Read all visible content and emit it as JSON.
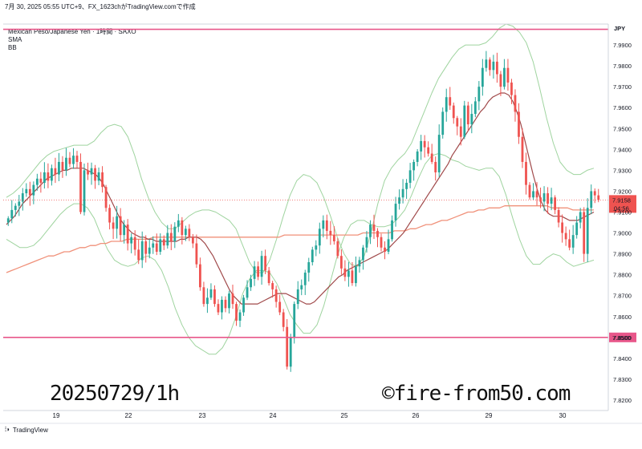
{
  "header": {
    "text": "7月 30, 2025 05:55 UTC+9、FX_1623chがTradingView.comで作成"
  },
  "legend": {
    "symbol": "Mexican Peso/Japanese Yen · 1時間 · SAXO",
    "items": [
      "SMA",
      "BB"
    ]
  },
  "currency_label": "JPY",
  "price_tags": {
    "current": "7.9158",
    "countdown": "04:56",
    "line_level": "7.8500"
  },
  "watermark_left": "20250729/1h",
  "watermark_right": "©fire-from50.com",
  "brand": {
    "icon": "tradingview-logo-icon",
    "text": "TradingView"
  },
  "colors": {
    "up": "#26a69a",
    "down": "#ef5350",
    "sma_short": "#a0494a",
    "sma_long": "#f0917a",
    "bb": "#9fd49f",
    "hline": "#e8578a",
    "price_tag": "#ef5350"
  },
  "chart_data": {
    "type": "candlestick",
    "symbol": "MXN/JPY",
    "timeframe": "1h",
    "ylim": [
      7.815,
      8.0
    ],
    "y_ticks": [
      "7.8200",
      "7.8300",
      "7.8400",
      "7.8500",
      "7.8600",
      "7.8700",
      "7.8800",
      "7.8900",
      "7.9000",
      "7.9100",
      "7.9200",
      "7.9300",
      "7.9400",
      "7.9500",
      "7.9600",
      "7.9700",
      "7.9800",
      "7.9900"
    ],
    "x_ticks": [
      "19",
      "22",
      "23",
      "24",
      "25",
      "26",
      "29",
      "30"
    ],
    "current_price": 7.9158,
    "horizontal_lines": [
      7.9975,
      7.85
    ],
    "closes": [
      7.907,
      7.911,
      7.913,
      7.915,
      7.919,
      7.921,
      7.918,
      7.923,
      7.926,
      7.924,
      7.929,
      7.925,
      7.931,
      7.928,
      7.934,
      7.93,
      7.936,
      7.933,
      7.937,
      7.934,
      7.91,
      7.93,
      7.928,
      7.931,
      7.925,
      7.929,
      7.922,
      7.912,
      7.905,
      7.902,
      7.908,
      7.899,
      7.904,
      7.895,
      7.898,
      7.892,
      7.887,
      7.896,
      7.89,
      7.893,
      7.895,
      7.891,
      7.897,
      7.894,
      7.9,
      7.896,
      7.903,
      7.906,
      7.899,
      7.902,
      7.898,
      7.895,
      7.885,
      7.874,
      7.866,
      7.869,
      7.873,
      7.866,
      7.862,
      7.868,
      7.864,
      7.871,
      7.866,
      7.858,
      7.862,
      7.869,
      7.874,
      7.878,
      7.884,
      7.879,
      7.889,
      7.882,
      7.876,
      7.873,
      7.867,
      7.862,
      7.855,
      7.836,
      7.85,
      7.866,
      7.873,
      7.875,
      7.881,
      7.886,
      7.892,
      7.894,
      7.902,
      7.906,
      7.901,
      7.899,
      7.896,
      7.889,
      7.883,
      7.879,
      7.882,
      7.876,
      7.884,
      7.887,
      7.893,
      7.898,
      7.904,
      7.901,
      7.898,
      7.893,
      7.891,
      7.897,
      7.906,
      7.914,
      7.917,
      7.921,
      7.924,
      7.93,
      7.934,
      7.939,
      7.944,
      7.941,
      7.938,
      7.934,
      7.929,
      7.947,
      7.958,
      7.965,
      7.961,
      7.955,
      7.951,
      7.946,
      7.961,
      7.952,
      7.957,
      7.963,
      7.97,
      7.979,
      7.983,
      7.978,
      7.982,
      7.976,
      7.97,
      7.979,
      7.972,
      7.966,
      7.958,
      7.946,
      7.934,
      7.923,
      7.917,
      7.92,
      7.917,
      7.915,
      7.919,
      7.914,
      7.917,
      7.911,
      7.905,
      7.9,
      7.897,
      7.893,
      7.899,
      7.905,
      7.91,
      7.89,
      7.912,
      7.92,
      7.918,
      7.9158
    ],
    "sma_short": [
      7.904,
      7.906,
      7.908,
      7.911,
      7.914,
      7.916,
      7.918,
      7.92,
      7.922,
      7.924,
      7.926,
      7.927,
      7.928,
      7.929,
      7.93,
      7.93,
      7.931,
      7.931,
      7.931,
      7.931,
      7.93,
      7.929,
      7.928,
      7.926,
      7.923,
      7.919,
      7.915,
      7.911,
      7.907,
      7.904,
      7.902,
      7.9,
      7.899,
      7.898,
      7.898,
      7.897,
      7.897,
      7.896,
      7.896,
      7.896,
      7.896,
      7.896,
      7.896,
      7.897,
      7.897,
      7.898,
      7.898,
      7.898,
      7.897,
      7.895,
      7.892,
      7.889,
      7.885,
      7.881,
      7.877,
      7.873,
      7.87,
      7.868,
      7.866,
      7.866,
      7.866,
      7.866,
      7.866,
      7.867,
      7.868,
      7.869,
      7.87,
      7.871,
      7.871,
      7.871,
      7.87,
      7.869,
      7.868,
      7.867,
      7.866,
      7.866,
      7.867,
      7.869,
      7.871,
      7.873,
      7.875,
      7.877,
      7.879,
      7.88,
      7.882,
      7.883,
      7.884,
      7.885,
      7.886,
      7.887,
      7.888,
      7.889,
      7.89,
      7.891,
      7.892,
      7.894,
      7.896,
      7.898,
      7.9,
      7.903,
      7.906,
      7.909,
      7.912,
      7.915,
      7.918,
      7.921,
      7.924,
      7.927,
      7.93,
      7.933,
      7.937,
      7.94,
      7.943,
      7.946,
      7.949,
      7.952,
      7.955,
      7.958,
      7.96,
      7.963,
      7.965,
      7.966,
      7.967,
      7.967,
      7.966,
      7.963,
      7.958,
      7.952,
      7.944,
      7.936,
      7.928,
      7.921,
      7.915,
      7.911,
      7.909,
      7.908,
      7.908,
      7.908,
      7.907,
      7.906,
      7.906,
      7.906,
      7.907,
      7.908,
      7.909,
      7.91
    ],
    "sma_long": [
      7.881,
      7.882,
      7.883,
      7.884,
      7.885,
      7.886,
      7.887,
      7.888,
      7.889,
      7.889,
      7.89,
      7.891,
      7.891,
      7.892,
      7.893,
      7.893,
      7.894,
      7.894,
      7.895,
      7.895,
      7.896,
      7.896,
      7.896,
      7.897,
      7.897,
      7.897,
      7.897,
      7.897,
      7.898,
      7.898,
      7.898,
      7.898,
      7.898,
      7.898,
      7.898,
      7.898,
      7.898,
      7.898,
      7.898,
      7.898,
      7.898,
      7.898,
      7.898,
      7.898,
      7.898,
      7.898,
      7.898,
      7.898,
      7.898,
      7.898,
      7.898,
      7.898,
      7.898,
      7.899,
      7.899,
      7.899,
      7.899,
      7.899,
      7.899,
      7.899,
      7.899,
      7.899,
      7.899,
      7.899,
      7.899,
      7.899,
      7.899,
      7.899,
      7.9,
      7.9,
      7.9,
      7.9,
      7.9,
      7.9,
      7.901,
      7.901,
      7.901,
      7.902,
      7.902,
      7.903,
      7.904,
      7.904,
      7.905,
      7.906,
      7.906,
      7.907,
      7.908,
      7.909,
      7.91,
      7.91,
      7.911,
      7.911,
      7.912,
      7.912,
      7.912,
      7.913,
      7.913,
      7.913,
      7.913,
      7.913,
      7.913,
      7.913,
      7.913,
      7.913,
      7.912,
      7.912,
      7.912,
      7.912,
      7.911,
      7.911,
      7.911,
      7.911,
      7.911
    ],
    "bb_upper": [
      7.917,
      7.919,
      7.922,
      7.926,
      7.93,
      7.934,
      7.937,
      7.939,
      7.94,
      7.941,
      7.942,
      7.942,
      7.942,
      7.944,
      7.948,
      7.951,
      7.952,
      7.951,
      7.946,
      7.937,
      7.926,
      7.917,
      7.91,
      7.905,
      7.902,
      7.902,
      7.905,
      7.908,
      7.91,
      7.911,
      7.911,
      7.91,
      7.908,
      7.906,
      7.902,
      7.894,
      7.886,
      7.881,
      7.881,
      7.887,
      7.897,
      7.908,
      7.918,
      7.925,
      7.928,
      7.927,
      7.924,
      7.917,
      7.908,
      7.898,
      7.89,
      7.885,
      7.884,
      7.889,
      7.9,
      7.914,
      7.925,
      7.931,
      7.935,
      7.938,
      7.943,
      7.951,
      7.959,
      7.967,
      7.974,
      7.979,
      7.984,
      7.988,
      7.99,
      7.99,
      7.99,
      7.991,
      7.994,
      7.998,
      8.0,
      7.999,
      7.996,
      7.991,
      7.982,
      7.969,
      7.955,
      7.943,
      7.934,
      7.93,
      7.928,
      7.928,
      7.93,
      7.931
    ],
    "bb_lower": [
      7.897,
      7.895,
      7.893,
      7.893,
      7.894,
      7.897,
      7.901,
      7.905,
      7.909,
      7.912,
      7.914,
      7.914,
      7.912,
      7.907,
      7.899,
      7.892,
      7.887,
      7.885,
      7.884,
      7.885,
      7.888,
      7.889,
      7.887,
      7.882,
      7.874,
      7.864,
      7.856,
      7.85,
      7.846,
      7.844,
      7.842,
      7.842,
      7.845,
      7.851,
      7.86,
      7.871,
      7.878,
      7.882,
      7.882,
      7.881,
      7.876,
      7.869,
      7.861,
      7.856,
      7.852,
      7.852,
      7.856,
      7.865,
      7.877,
      7.889,
      7.898,
      7.904,
      7.906,
      7.906,
      7.904,
      7.903,
      7.903,
      7.904,
      7.907,
      7.911,
      7.918,
      7.926,
      7.933,
      7.937,
      7.938,
      7.937,
      7.935,
      7.934,
      7.932,
      7.931,
      7.93,
      7.931,
      7.931,
      7.927,
      7.918,
      7.907,
      7.897,
      7.889,
      7.885,
      7.885,
      7.888,
      7.89,
      7.889,
      7.886,
      7.884,
      7.885,
      7.886,
      7.887
    ]
  }
}
